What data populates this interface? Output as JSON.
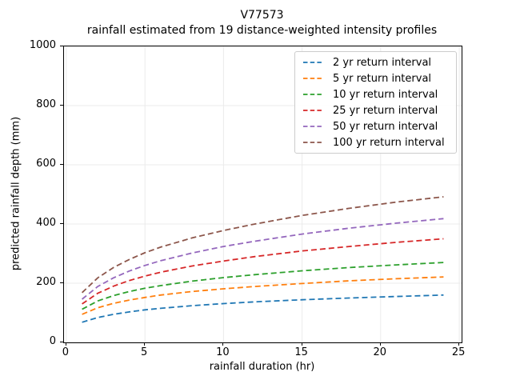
{
  "title": {
    "line1": "V77573",
    "line2": "rainfall estimated from 19 distance-weighted intensity profiles"
  },
  "axes": {
    "xlabel": "rainfall duration (hr)",
    "ylabel": "predicted rainfall depth (mm)",
    "x_ticks": [
      0,
      5,
      10,
      15,
      20,
      25
    ],
    "y_ticks": [
      0,
      200,
      400,
      600,
      800,
      1000
    ],
    "xlim": [
      -0.15,
      25.15
    ],
    "ylim": [
      0,
      1000
    ],
    "grid": true,
    "grid_color": "#ebebeb",
    "spine_color": "#000000"
  },
  "legend": {
    "position": "upper right",
    "entries": [
      {
        "label": "2 yr return interval",
        "color": "#1f77b4"
      },
      {
        "label": "5 yr return interval",
        "color": "#ff7f0e"
      },
      {
        "label": "10 yr return interval",
        "color": "#2ca02c"
      },
      {
        "label": "25 yr return interval",
        "color": "#d62728"
      },
      {
        "label": "50 yr return interval",
        "color": "#9467bd"
      },
      {
        "label": "100 yr return interval",
        "color": "#8c564b"
      }
    ]
  },
  "chart_data": {
    "type": "line",
    "title": "V77573",
    "subtitle": "rainfall estimated from 19 distance-weighted intensity profiles",
    "xlabel": "rainfall duration (hr)",
    "ylabel": "predicted rainfall depth (mm)",
    "xlim": [
      -0.15,
      25.15
    ],
    "ylim": [
      0,
      1000
    ],
    "grid": true,
    "legend_position": "upper right",
    "linestyle": "dashed",
    "x": [
      1,
      2,
      3,
      4,
      5,
      6,
      8,
      10,
      12,
      15,
      18,
      21,
      24
    ],
    "series": [
      {
        "name": "2 yr return interval",
        "color": "#1f77b4",
        "values": [
          68,
          84,
          95,
          103,
          110,
          115,
          124,
          131,
          137,
          144,
          150,
          155,
          160
        ]
      },
      {
        "name": "5 yr return interval",
        "color": "#ff7f0e",
        "values": [
          95,
          117,
          132,
          143,
          152,
          160,
          172,
          181,
          189,
          199,
          208,
          215,
          221
        ]
      },
      {
        "name": "10 yr return interval",
        "color": "#2ca02c",
        "values": [
          112,
          140,
          158,
          172,
          183,
          192,
          207,
          219,
          229,
          242,
          253,
          262,
          270
        ]
      },
      {
        "name": "25 yr return interval",
        "color": "#d62728",
        "values": [
          130,
          166,
          190,
          209,
          224,
          237,
          258,
          275,
          290,
          309,
          324,
          338,
          350
        ]
      },
      {
        "name": "50 yr return interval",
        "color": "#9467bd",
        "values": [
          146,
          189,
          218,
          241,
          260,
          276,
          302,
          324,
          342,
          366,
          386,
          403,
          418
        ]
      },
      {
        "name": "100 yr return interval",
        "color": "#8c564b",
        "values": [
          168,
          218,
          253,
          280,
          303,
          322,
          353,
          378,
          400,
          429,
          453,
          474,
          492
        ]
      }
    ]
  }
}
